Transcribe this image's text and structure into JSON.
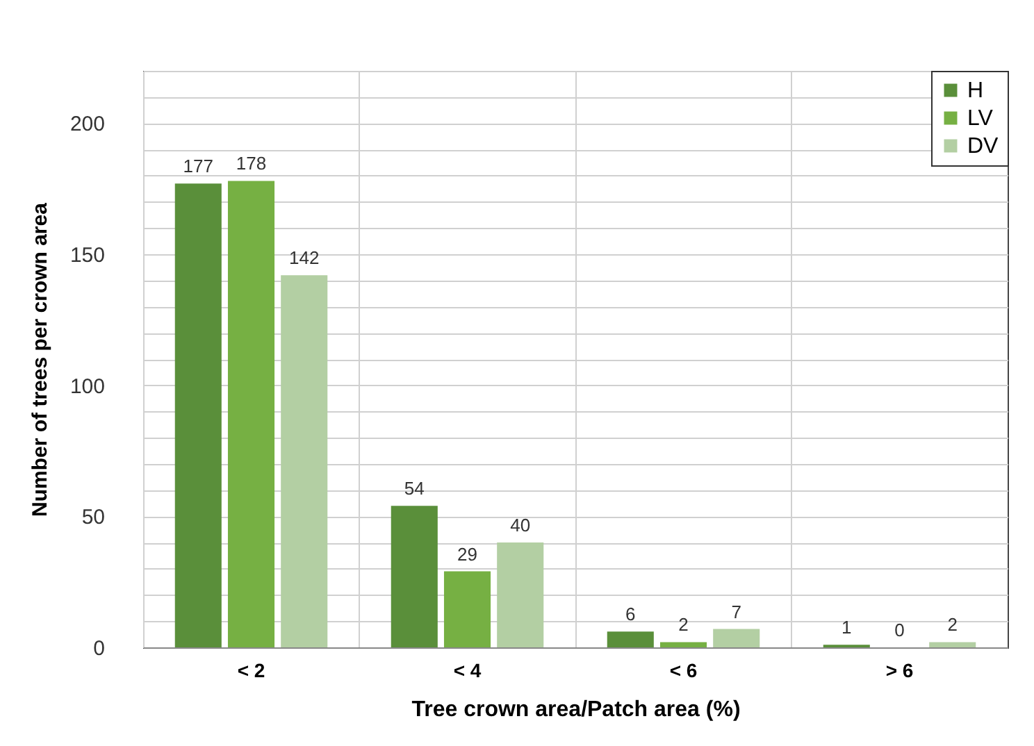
{
  "chart_data": {
    "type": "bar",
    "xlabel": "Tree crown area/Patch area (%)",
    "ylabel": "Number of trees per crown area",
    "categories": [
      "< 2",
      "< 4",
      "< 6",
      "> 6"
    ],
    "series": [
      {
        "name": "H",
        "color": "#5a8f3a",
        "values": [
          177,
          54,
          6,
          1
        ]
      },
      {
        "name": "LV",
        "color": "#76b043",
        "values": [
          178,
          29,
          2,
          0
        ]
      },
      {
        "name": "DV",
        "color": "#b3cfa3",
        "values": [
          142,
          40,
          7,
          2
        ]
      }
    ],
    "ylim": [
      0,
      220
    ],
    "yticks": [
      0,
      {
        "value": 10,
        "label": null
      },
      {
        "value": 20,
        "label": null
      },
      {
        "value": 30,
        "label": null
      },
      {
        "value": 40,
        "label": null
      },
      50,
      {
        "value": 60,
        "label": null
      },
      {
        "value": 70,
        "label": null
      },
      {
        "value": 80,
        "label": null
      },
      {
        "value": 90,
        "label": null
      },
      100,
      {
        "value": 110,
        "label": null
      },
      {
        "value": 120,
        "label": null
      },
      {
        "value": 130,
        "label": null
      },
      {
        "value": 140,
        "label": null
      },
      150,
      {
        "value": 160,
        "label": null
      },
      {
        "value": 170,
        "label": null
      },
      {
        "value": 180,
        "label": null
      },
      {
        "value": 190,
        "label": null
      },
      200,
      {
        "value": 210,
        "label": null
      },
      {
        "value": 220,
        "label": null
      }
    ],
    "grid": true,
    "legend": "top right",
    "data_labels": true
  }
}
